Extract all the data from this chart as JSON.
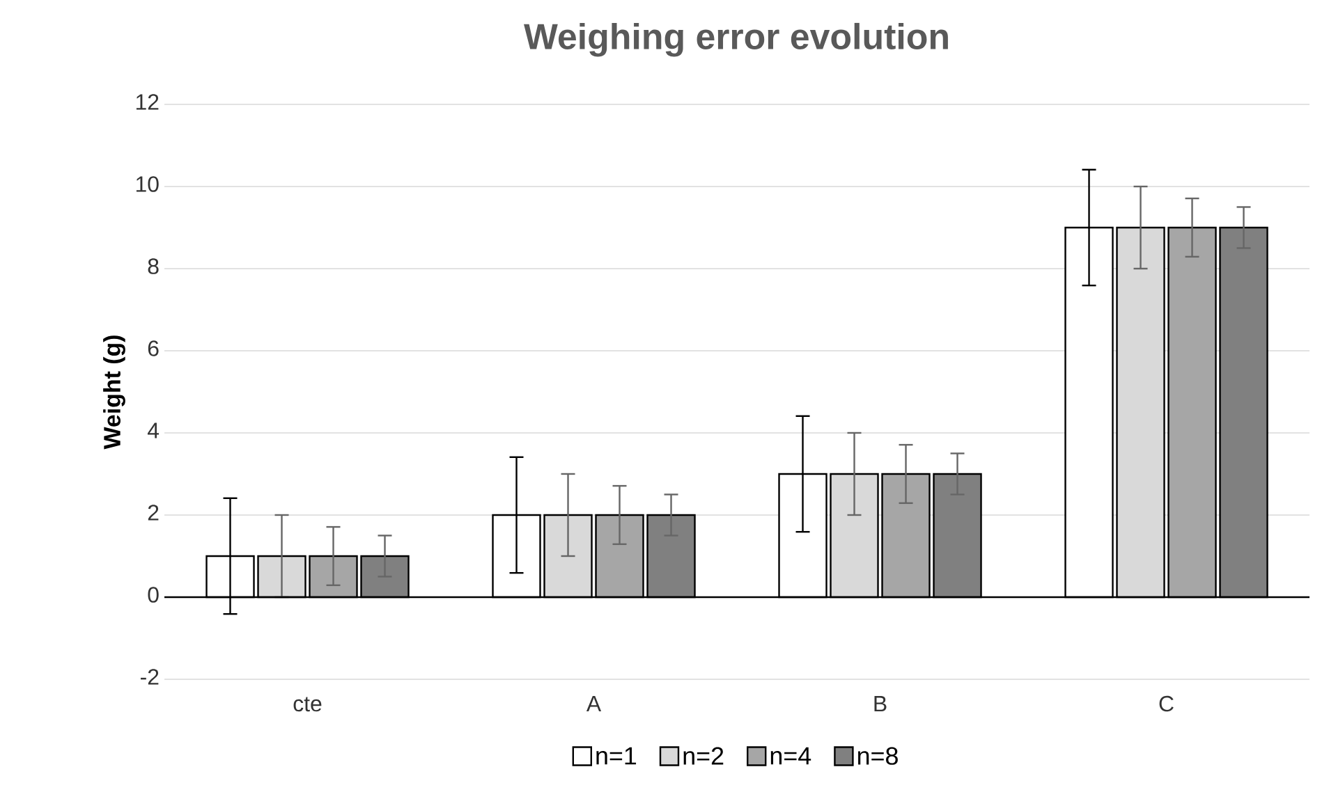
{
  "chart_data": {
    "type": "bar",
    "title": "Weighing error evolution",
    "ylabel": "Weight (g)",
    "categories": [
      "cte",
      "A",
      "B",
      "C"
    ],
    "series": [
      {
        "name": "n=1",
        "color": "#ffffff",
        "values": [
          1,
          2,
          3,
          9
        ],
        "errors": [
          1.41,
          1.41,
          1.41,
          1.41
        ]
      },
      {
        "name": "n=2",
        "color": "#d9d9d9",
        "values": [
          1,
          2,
          3,
          9
        ],
        "errors": [
          1,
          1,
          1,
          1
        ]
      },
      {
        "name": "n=4",
        "color": "#a6a6a6",
        "values": [
          1,
          2,
          3,
          9
        ],
        "errors": [
          0.71,
          0.71,
          0.71,
          0.71
        ]
      },
      {
        "name": "n=8",
        "color": "#808080",
        "values": [
          1,
          2,
          3,
          9
        ],
        "errors": [
          0.5,
          0.5,
          0.5,
          0.5
        ]
      }
    ],
    "ylim": [
      -2,
      12
    ],
    "yticks": [
      -2,
      0,
      2,
      4,
      6,
      8,
      10,
      12
    ],
    "grid": "y",
    "legend": "bottom"
  }
}
